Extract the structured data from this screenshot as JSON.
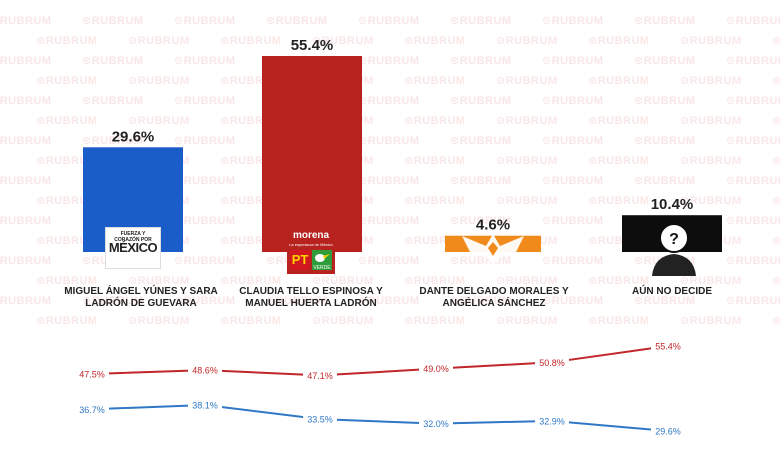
{
  "watermark": "RUBRUM",
  "chart_data": {
    "type": "bar",
    "categories": [
      "MIGUEL ÁNGEL YÚNES Y SARA LADRÓN DE GUEVARA",
      "CLAUDIA TELLO ESPINOSA Y MANUEL HUERTA LADRÓN",
      "DANTE DELGADO MORALES Y ANGÉLICA SÁNCHEZ",
      "AÚN NO DECIDE"
    ],
    "values": [
      29.6,
      55.4,
      4.6,
      10.4
    ],
    "value_labels": [
      "29.6%",
      "55.4%",
      "4.6%",
      "10.4%"
    ],
    "bar_colors": [
      "#1a5cc8",
      "#b7221f",
      "#f08a1a",
      "#0d0d0d"
    ],
    "trend": {
      "type": "line",
      "series": [
        {
          "color": "#c1262a",
          "values": [
            47.5,
            48.6,
            47.1,
            49.0,
            50.8,
            55.4
          ],
          "labels": [
            "47.5%",
            "48.6%",
            "47.1%",
            "49.0%",
            "50.8%",
            "55.4%"
          ]
        },
        {
          "color": "#2e78c6",
          "values": [
            36.7,
            38.1,
            33.5,
            32.0,
            32.9,
            29.6
          ],
          "labels": [
            "36.7%",
            "38.1%",
            "33.5%",
            "32.0%",
            "32.9%",
            "29.6%"
          ]
        }
      ]
    }
  },
  "logos": {
    "fcpm_top": "FUERZA Y CORAZÓN POR",
    "fcpm_main": "MÉXICO",
    "morena": "morena",
    "morena_sub": "La esperanza de México",
    "pt": "PT",
    "verde": "VERDE",
    "mc_name": "MOVIMIENTO CIUDADANO",
    "undecided_mark": "?"
  }
}
